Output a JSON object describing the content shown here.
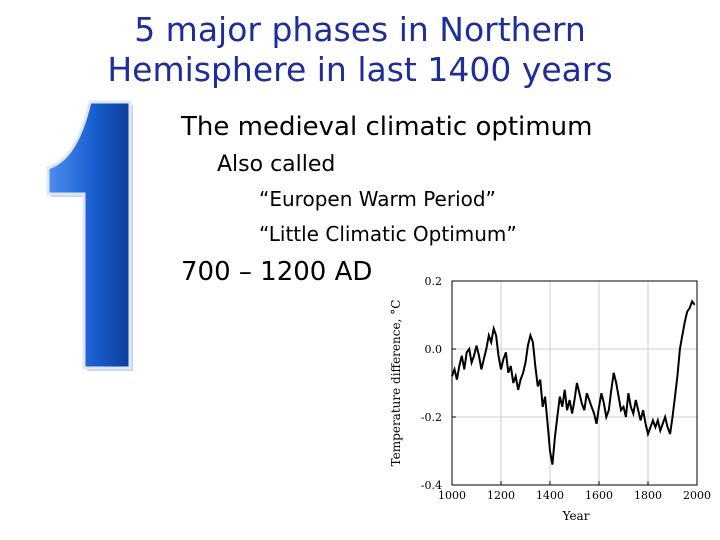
{
  "slide": {
    "title_line1": "5 major phases in Northern",
    "title_line2": "Hemisphere in last 1400 years",
    "numeral": "1",
    "bullets": {
      "main": "The medieval climatic optimum",
      "sub": "Also called",
      "alias1": "“Europen Warm Period”",
      "alias2": "“Little Climatic Optimum”",
      "period": "700 – 1200 AD"
    },
    "colors": {
      "title": "#1f2d9a",
      "numeral": "#1a5fd0"
    }
  },
  "chart_data": {
    "type": "line",
    "xlabel": "Year",
    "ylabel": "Temperature difference, °C",
    "xlim": [
      1000,
      2000
    ],
    "ylim": [
      -0.4,
      0.2
    ],
    "xticks": [
      "1000",
      "1200",
      "1400",
      "1600",
      "1800",
      "2000"
    ],
    "yticks": [
      "0.2",
      "0.0",
      "-0.2",
      "-0.4"
    ],
    "grid": true,
    "series": [
      {
        "x": [
          1000,
          1010,
          1020,
          1030,
          1040,
          1050,
          1060,
          1070,
          1080,
          1090,
          1100,
          1110,
          1120,
          1130,
          1140,
          1150,
          1160,
          1170,
          1180,
          1190,
          1200,
          1210,
          1220,
          1230,
          1240,
          1250,
          1260,
          1270,
          1280,
          1290,
          1300,
          1310,
          1320,
          1330,
          1340,
          1350,
          1360,
          1370,
          1380,
          1390,
          1400,
          1410,
          1420,
          1430,
          1440,
          1450,
          1460,
          1470,
          1480,
          1490,
          1500,
          1510,
          1520,
          1530,
          1540,
          1550,
          1560,
          1570,
          1580,
          1590,
          1600,
          1610,
          1620,
          1630,
          1640,
          1650,
          1660,
          1670,
          1680,
          1690,
          1700,
          1710,
          1720,
          1730,
          1740,
          1750,
          1760,
          1770,
          1780,
          1790,
          1800,
          1810,
          1820,
          1830,
          1840,
          1850,
          1860,
          1870,
          1880,
          1890,
          1900,
          1910,
          1920,
          1930,
          1940,
          1950,
          1960,
          1970,
          1980,
          1990
        ],
        "y": [
          -0.08,
          -0.06,
          -0.09,
          -0.05,
          -0.02,
          -0.06,
          -0.01,
          0.0,
          -0.04,
          -0.02,
          0.01,
          -0.02,
          -0.06,
          -0.03,
          0.0,
          0.04,
          0.02,
          0.06,
          0.04,
          -0.02,
          -0.06,
          -0.03,
          -0.01,
          -0.07,
          -0.05,
          -0.1,
          -0.08,
          -0.12,
          -0.09,
          -0.07,
          -0.04,
          0.01,
          0.04,
          0.02,
          -0.05,
          -0.11,
          -0.09,
          -0.17,
          -0.14,
          -0.22,
          -0.3,
          -0.34,
          -0.26,
          -0.2,
          -0.14,
          -0.17,
          -0.12,
          -0.18,
          -0.15,
          -0.19,
          -0.15,
          -0.1,
          -0.13,
          -0.16,
          -0.18,
          -0.13,
          -0.15,
          -0.17,
          -0.19,
          -0.22,
          -0.17,
          -0.13,
          -0.16,
          -0.2,
          -0.18,
          -0.12,
          -0.07,
          -0.1,
          -0.14,
          -0.18,
          -0.17,
          -0.2,
          -0.13,
          -0.17,
          -0.19,
          -0.15,
          -0.18,
          -0.21,
          -0.18,
          -0.22,
          -0.25,
          -0.23,
          -0.21,
          -0.23,
          -0.21,
          -0.24,
          -0.22,
          -0.2,
          -0.23,
          -0.25,
          -0.2,
          -0.14,
          -0.08,
          0.0,
          0.04,
          0.08,
          0.11,
          0.12,
          0.14,
          0.13
        ]
      }
    ]
  }
}
